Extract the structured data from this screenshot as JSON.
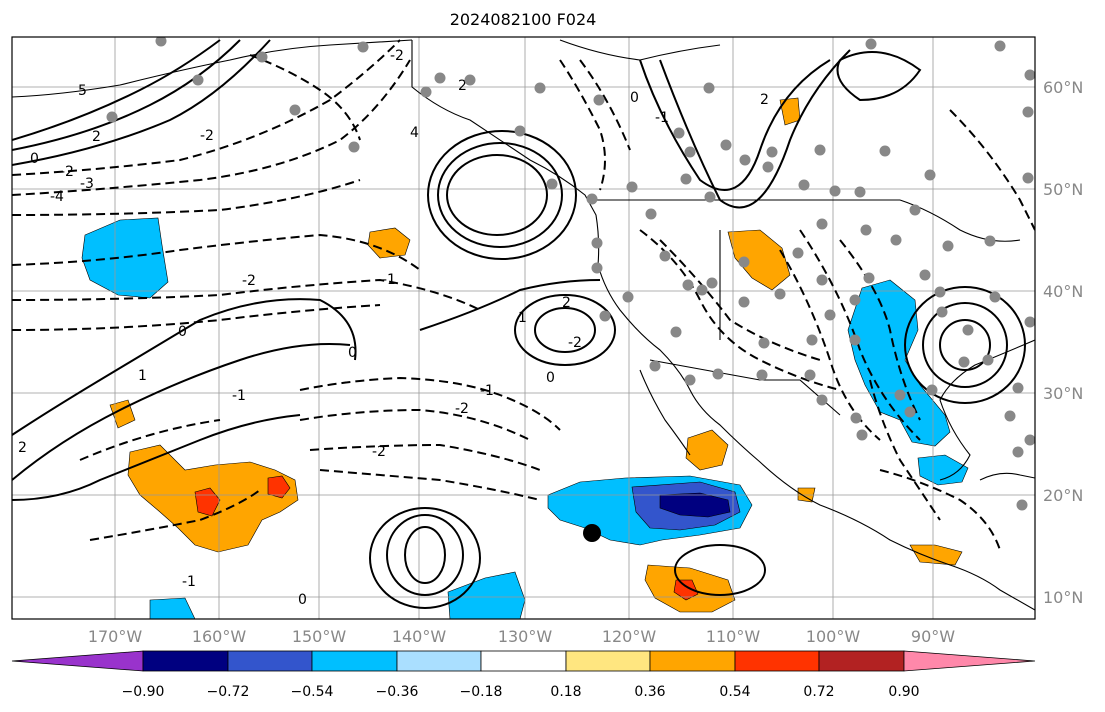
{
  "title": "2024082100 F024",
  "map": {
    "lon_range": [
      -180,
      -80
    ],
    "lat_range": [
      8,
      65
    ],
    "lon_labels": [
      "170°W",
      "160°W",
      "150°W",
      "140°W",
      "130°W",
      "120°W",
      "110°W",
      "100°W",
      "90°W"
    ],
    "lat_labels": [
      "60°N",
      "50°N",
      "40°N",
      "30°N",
      "20°N",
      "10°N"
    ],
    "contour_labels": [
      "5",
      "2",
      "0",
      "-2",
      "-3",
      "-4",
      "-2",
      "4",
      "-2",
      "2",
      "0",
      "-1",
      "2",
      "-2",
      "-1",
      "2",
      "-2",
      "1",
      "0",
      "-1",
      "-2",
      "-2",
      "0",
      "-1",
      "1",
      "0",
      "-1",
      "0",
      "2"
    ],
    "station_marker": {
      "lon": -123,
      "lat": 16.5,
      "color": "#000000"
    }
  },
  "colorbar": {
    "ticks": [
      "−0.90",
      "−0.72",
      "−0.54",
      "−0.36",
      "−0.18",
      "0.18",
      "0.36",
      "0.54",
      "0.72",
      "0.90"
    ],
    "colors": [
      "#9933cc",
      "#000080",
      "#3355cc",
      "#00bfff",
      "#aadfff",
      "#ffffff",
      "#ffe680",
      "#ffa500",
      "#ff3300",
      "#b22222",
      "#ff88aa"
    ]
  },
  "fill_colors": {
    "light_blue": "#00bfff",
    "mid_blue": "#3355cc",
    "dark_blue": "#000080",
    "orange": "#ffa500",
    "red": "#ff3300",
    "station_dots": "#888888"
  }
}
